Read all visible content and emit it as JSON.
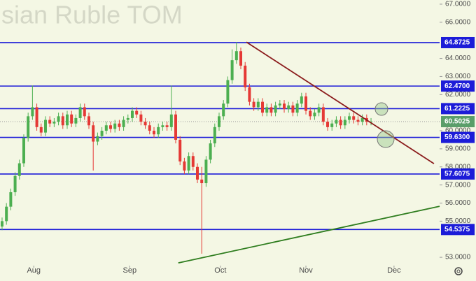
{
  "chart_data": {
    "type": "candlestick",
    "title": "sian Ruble TOM",
    "x": [
      0,
      1,
      2,
      3,
      4,
      5,
      6,
      7,
      8,
      9,
      10,
      11,
      12,
      13,
      14,
      15,
      16,
      17,
      18,
      19,
      20,
      21,
      22,
      23,
      24,
      25,
      26,
      27,
      28,
      29,
      30,
      31,
      32,
      33,
      34,
      35,
      36,
      37,
      38,
      39,
      40,
      41,
      42,
      43,
      44,
      45,
      46,
      47,
      48,
      49,
      50,
      51,
      52,
      53,
      54,
      55,
      56,
      57,
      58,
      59,
      60,
      61,
      62,
      63,
      64,
      65,
      66,
      67,
      68,
      69,
      70,
      71,
      72,
      73,
      74,
      75,
      76,
      77,
      78,
      79,
      80,
      81,
      82,
      83,
      84,
      85
    ],
    "open": [
      54.7,
      55.0,
      55.8,
      56.6,
      57.5,
      58.2,
      59.6,
      60.8,
      61.3,
      60.2,
      59.9,
      60.6,
      60.4,
      60.5,
      60.8,
      60.3,
      60.9,
      60.4,
      60.7,
      61.3,
      60.8,
      60.3,
      59.4,
      59.7,
      60.0,
      60.3,
      60.1,
      60.4,
      60.2,
      60.6,
      60.7,
      61.1,
      60.9,
      60.5,
      60.3,
      60.0,
      59.8,
      60.2,
      60.3,
      60.2,
      60.9,
      59.5,
      58.3,
      57.8,
      58.6,
      58.0,
      57.3,
      57.1,
      58.4,
      59.3,
      60.2,
      60.8,
      61.5,
      62.8,
      63.9,
      64.4,
      63.6,
      62.4,
      61.6,
      61.3,
      61.6,
      61.0,
      61.3,
      61.0,
      61.4,
      61.5,
      61.2,
      61.4,
      61.0,
      61.5,
      61.9,
      61.1,
      60.8,
      61.0,
      61.3,
      60.5,
      60.2,
      60.4,
      60.6,
      60.3,
      60.6,
      60.8,
      60.6,
      60.5,
      60.7,
      60.5
    ],
    "high": [
      55.2,
      56.0,
      56.8,
      57.7,
      58.4,
      59.8,
      61.0,
      62.5,
      61.5,
      60.4,
      60.8,
      60.8,
      60.7,
      61.0,
      61.0,
      61.1,
      61.1,
      60.9,
      61.5,
      61.5,
      61.0,
      60.5,
      59.9,
      60.2,
      60.5,
      60.5,
      60.6,
      60.6,
      60.8,
      60.9,
      61.3,
      61.3,
      61.1,
      60.7,
      60.5,
      60.2,
      60.4,
      60.5,
      60.5,
      62.5,
      61.1,
      59.7,
      58.5,
      58.8,
      58.8,
      58.2,
      58.0,
      58.6,
      59.5,
      60.4,
      61.0,
      61.7,
      63.0,
      64.5,
      64.9,
      64.6,
      63.8,
      62.6,
      61.8,
      61.8,
      61.8,
      61.5,
      61.5,
      61.6,
      61.7,
      61.7,
      61.6,
      61.6,
      61.7,
      62.1,
      62.1,
      61.3,
      61.2,
      61.5,
      61.5,
      60.7,
      60.6,
      60.8,
      60.8,
      60.8,
      61.0,
      61.0,
      60.8,
      60.9,
      60.9,
      60.7
    ],
    "low": [
      54.5,
      54.8,
      55.6,
      56.4,
      57.3,
      58.0,
      59.4,
      60.6,
      60.0,
      59.7,
      59.7,
      60.2,
      60.2,
      60.3,
      60.1,
      60.1,
      60.2,
      60.2,
      60.5,
      60.6,
      60.1,
      57.8,
      59.2,
      59.5,
      59.8,
      59.9,
      59.9,
      60.0,
      60.0,
      60.4,
      60.5,
      60.7,
      60.3,
      60.1,
      59.8,
      59.6,
      59.6,
      60.0,
      60.0,
      60.0,
      59.3,
      58.1,
      57.6,
      57.6,
      57.8,
      57.1,
      53.2,
      56.9,
      58.2,
      59.1,
      60.0,
      60.6,
      61.3,
      62.6,
      63.7,
      63.4,
      62.2,
      61.4,
      61.1,
      61.1,
      60.8,
      60.8,
      60.8,
      60.8,
      61.2,
      61.0,
      61.0,
      60.8,
      60.8,
      61.3,
      60.9,
      60.6,
      60.6,
      60.8,
      60.3,
      60.0,
      60.0,
      60.2,
      60.1,
      60.1,
      60.4,
      60.4,
      60.3,
      60.3,
      60.3,
      60.3
    ],
    "close": [
      55.0,
      55.8,
      56.6,
      57.5,
      58.2,
      59.6,
      60.8,
      61.3,
      60.2,
      59.9,
      60.6,
      60.4,
      60.5,
      60.8,
      60.3,
      60.9,
      60.4,
      60.7,
      61.3,
      60.8,
      60.3,
      59.4,
      59.7,
      60.0,
      60.3,
      60.1,
      60.4,
      60.2,
      60.6,
      60.7,
      61.1,
      60.9,
      60.5,
      60.3,
      60.0,
      59.8,
      60.2,
      60.3,
      60.2,
      60.9,
      59.5,
      58.3,
      57.8,
      58.6,
      58.0,
      57.3,
      57.1,
      58.4,
      59.3,
      60.2,
      60.8,
      61.5,
      62.8,
      63.9,
      64.4,
      63.6,
      62.4,
      61.6,
      61.3,
      61.6,
      61.0,
      61.3,
      61.0,
      61.4,
      61.5,
      61.2,
      61.4,
      61.0,
      61.5,
      61.9,
      61.1,
      60.8,
      61.0,
      61.3,
      60.5,
      60.2,
      60.4,
      60.6,
      60.3,
      60.6,
      60.8,
      60.6,
      60.5,
      60.7,
      60.5,
      60.5025
    ],
    "up_color": "#4caf50",
    "down_color": "#e53935",
    "xlim": [
      -0.48,
      100.8
    ],
    "xticks": [
      {
        "value": 7.3,
        "label": "Aug"
      },
      {
        "value": 29.4,
        "label": "Sep"
      },
      {
        "value": 50.3,
        "label": "Oct"
      },
      {
        "value": 70,
        "label": "Nov"
      },
      {
        "value": 90.3,
        "label": "Dec"
      }
    ],
    "ylim": [
      52.54,
      67.23
    ],
    "yticks": [
      {
        "value": 67,
        "label": "67.0000"
      },
      {
        "value": 66,
        "label": "66.0000"
      },
      {
        "value": 64,
        "label": "64.0000"
      },
      {
        "value": 63,
        "label": "63.0000"
      },
      {
        "value": 62,
        "label": "62.0000"
      },
      {
        "value": 60,
        "label": "60.0000"
      },
      {
        "value": 59,
        "label": "59.0000"
      },
      {
        "value": 58,
        "label": "58.0000"
      },
      {
        "value": 57,
        "label": "57.0000"
      },
      {
        "value": 56,
        "label": "56.0000"
      },
      {
        "value": 55,
        "label": "55.0000"
      },
      {
        "value": 53,
        "label": "53.0000"
      }
    ],
    "levels": [
      64.8725,
      {
        "value": 62.47,
        "label": "62.4700"
      },
      61.2225,
      {
        "value": 59.63,
        "label": "59.6300"
      },
      57.6075,
      54.5375
    ],
    "level_color": "#1c1cd8",
    "last_price": 60.5025,
    "last_color": "#5a9e6a",
    "trendlines": [
      {
        "color": "#8b1c1c",
        "x": [
          56.3,
          99.5
        ],
        "y": [
          64.9,
          58.18
        ]
      },
      {
        "color": "#2e7d1e",
        "x": [
          40.6,
          100.8
        ],
        "y": [
          52.69,
          55.82
        ]
      }
    ]
  }
}
